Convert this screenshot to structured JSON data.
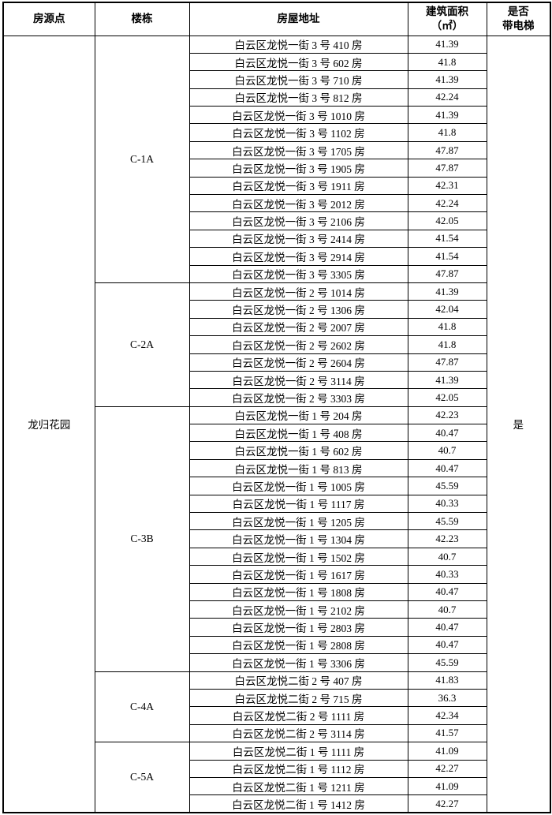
{
  "table": {
    "headers": {
      "site": "房源点",
      "building": "楼栋",
      "address": "房屋地址",
      "area_line1": "建筑面积",
      "area_line2": "（㎡）",
      "elevator_line1": "是否",
      "elevator_line2": "带电梯"
    },
    "site": "龙归花园",
    "elevator": "是",
    "sections": [
      {
        "building": "C-1A",
        "rows": [
          {
            "address": "白云区龙悦一街 3 号 410 房",
            "area": "41.39"
          },
          {
            "address": "白云区龙悦一街 3 号 602 房",
            "area": "41.8"
          },
          {
            "address": "白云区龙悦一街 3 号 710 房",
            "area": "41.39"
          },
          {
            "address": "白云区龙悦一街 3 号 812 房",
            "area": "42.24"
          },
          {
            "address": "白云区龙悦一街 3 号 1010 房",
            "area": "41.39"
          },
          {
            "address": "白云区龙悦一街 3 号 1102 房",
            "area": "41.8"
          },
          {
            "address": "白云区龙悦一街 3 号 1705 房",
            "area": "47.87"
          },
          {
            "address": "白云区龙悦一街 3 号 1905 房",
            "area": "47.87"
          },
          {
            "address": "白云区龙悦一街 3 号 1911 房",
            "area": "42.31"
          },
          {
            "address": "白云区龙悦一街 3 号 2012 房",
            "area": "42.24"
          },
          {
            "address": "白云区龙悦一街 3 号 2106 房",
            "area": "42.05"
          },
          {
            "address": "白云区龙悦一街 3 号 2414 房",
            "area": "41.54"
          },
          {
            "address": "白云区龙悦一街 3 号 2914 房",
            "area": "41.54"
          },
          {
            "address": "白云区龙悦一街 3 号 3305 房",
            "area": "47.87"
          }
        ]
      },
      {
        "building": "C-2A",
        "rows": [
          {
            "address": "白云区龙悦一街 2 号 1014 房",
            "area": "41.39"
          },
          {
            "address": "白云区龙悦一街 2 号 1306 房",
            "area": "42.04"
          },
          {
            "address": "白云区龙悦一街 2 号 2007 房",
            "area": "41.8"
          },
          {
            "address": "白云区龙悦一街 2 号 2602 房",
            "area": "41.8"
          },
          {
            "address": "白云区龙悦一街 2 号 2604 房",
            "area": "47.87"
          },
          {
            "address": "白云区龙悦一街 2 号 3114 房",
            "area": "41.39"
          },
          {
            "address": "白云区龙悦一街 2 号 3303 房",
            "area": "42.05"
          }
        ]
      },
      {
        "building": "C-3B",
        "rows": [
          {
            "address": "白云区龙悦一街 1 号 204 房",
            "area": "42.23"
          },
          {
            "address": "白云区龙悦一街 1 号 408 房",
            "area": "40.47"
          },
          {
            "address": "白云区龙悦一街 1 号 602 房",
            "area": "40.7"
          },
          {
            "address": "白云区龙悦一街 1 号 813 房",
            "area": "40.47"
          },
          {
            "address": "白云区龙悦一街 1 号 1005 房",
            "area": "45.59"
          },
          {
            "address": "白云区龙悦一街 1 号 1117 房",
            "area": "40.33"
          },
          {
            "address": "白云区龙悦一街 1 号 1205 房",
            "area": "45.59"
          },
          {
            "address": "白云区龙悦一街 1 号 1304 房",
            "area": "42.23"
          },
          {
            "address": "白云区龙悦一街 1 号 1502 房",
            "area": "40.7"
          },
          {
            "address": "白云区龙悦一街 1 号 1617 房",
            "area": "40.33"
          },
          {
            "address": "白云区龙悦一街 1 号 1808 房",
            "area": "40.47"
          },
          {
            "address": "白云区龙悦一街 1 号 2102 房",
            "area": "40.7"
          },
          {
            "address": "白云区龙悦一街 1 号 2803 房",
            "area": "40.47"
          },
          {
            "address": "白云区龙悦一街 1 号 2808 房",
            "area": "40.47"
          },
          {
            "address": "白云区龙悦一街 1 号 3306 房",
            "area": "45.59"
          }
        ]
      },
      {
        "building": "C-4A",
        "rows": [
          {
            "address": "白云区龙悦二街 2 号 407 房",
            "area": "41.83"
          },
          {
            "address": "白云区龙悦二街 2 号 715 房",
            "area": "36.3"
          },
          {
            "address": "白云区龙悦二街 2 号 1111 房",
            "area": "42.34"
          },
          {
            "address": "白云区龙悦二街 2 号 3114 房",
            "area": "41.57"
          }
        ]
      },
      {
        "building": "C-5A",
        "rows": [
          {
            "address": "白云区龙悦二街 1 号 1111 房",
            "area": "41.09"
          },
          {
            "address": "白云区龙悦二街 1 号 1112 房",
            "area": "42.27"
          },
          {
            "address": "白云区龙悦二街 1 号 1211 房",
            "area": "41.09"
          },
          {
            "address": "白云区龙悦二街 1 号 1412 房",
            "area": "42.27"
          }
        ]
      }
    ]
  }
}
